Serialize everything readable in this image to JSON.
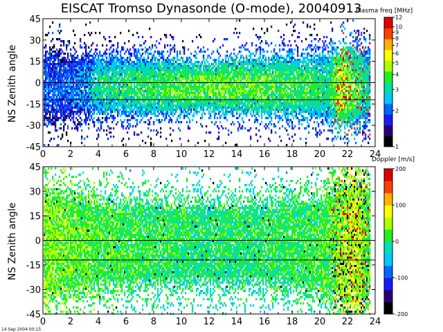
{
  "figure": {
    "title": "EISCAT Tromso Dynasonde (O-mode),  20040913",
    "timestamp": "14 Sep 2004 00:15"
  },
  "chart_data": [
    {
      "type": "heatmap",
      "name": "plasma",
      "ylabel": "NS Zenith angle",
      "xlim": [
        0,
        24
      ],
      "ylim": [
        -45,
        45
      ],
      "x_ticks": [
        "0",
        "2",
        "4",
        "6",
        "8",
        "10",
        "12",
        "14",
        "16",
        "18",
        "20",
        "22",
        "24"
      ],
      "y_ticks": [
        "45",
        "30",
        "15",
        "0",
        "-15",
        "-30",
        "-45"
      ],
      "reference_lines_y": [
        0,
        -12
      ],
      "colorbar": {
        "title": "Plasma freq [MHz]",
        "scale": "log",
        "range": [
          1,
          12
        ],
        "ticks": [
          "12",
          "10",
          "9",
          "8",
          "7",
          "6",
          "5",
          "4",
          "3",
          "2",
          "1"
        ],
        "colors": [
          "#000000",
          "#2a007a",
          "#1a1aff",
          "#0066ff",
          "#00c8ff",
          "#00e0a0",
          "#22ee22",
          "#aaff00",
          "#ffff00",
          "#ffb000",
          "#ff4000",
          "#e00000"
        ]
      },
      "profile": {
        "x_hours": [
          0,
          2,
          4,
          8,
          12,
          16,
          19,
          20.5,
          21.5,
          23.5
        ],
        "typical_freq_MHz": [
          2.1,
          2.2,
          3.2,
          3.6,
          4.2,
          3.9,
          3.7,
          3.3,
          5.0,
          3.0
        ],
        "core_half_width_deg": [
          20,
          18,
          17,
          17,
          14,
          17,
          18,
          20,
          22,
          22
        ]
      }
    },
    {
      "type": "heatmap",
      "name": "doppler",
      "ylabel": "NS Zenith angle",
      "xlim": [
        0,
        24
      ],
      "ylim": [
        -45,
        45
      ],
      "x_ticks": [
        "0",
        "2",
        "4",
        "6",
        "8",
        "10",
        "12",
        "14",
        "16",
        "18",
        "20",
        "22",
        "24"
      ],
      "y_ticks": [
        "45",
        "30",
        "15",
        "0",
        "-15",
        "-30",
        "-45"
      ],
      "reference_lines_y": [
        0,
        -12
      ],
      "colorbar": {
        "title": "Doppler [m/s]",
        "range": [
          -200,
          200
        ],
        "ticks": [
          "200",
          "100",
          "0",
          "-100",
          "-200"
        ],
        "colors": [
          "#000000",
          "#2a007a",
          "#1a1aff",
          "#0066ff",
          "#00c8ff",
          "#00e0c0",
          "#22ee22",
          "#aaff00",
          "#ffff00",
          "#ffb000",
          "#ff4000",
          "#e00000"
        ]
      },
      "profile": {
        "x_hours": [
          0,
          4,
          8,
          12,
          16,
          20,
          21,
          22.5,
          23.5
        ],
        "typical_doppler_ms": [
          40,
          20,
          10,
          0,
          5,
          15,
          30,
          60,
          20
        ],
        "core_half_width_deg": [
          28,
          22,
          20,
          20,
          20,
          24,
          30,
          35,
          30
        ]
      }
    }
  ]
}
